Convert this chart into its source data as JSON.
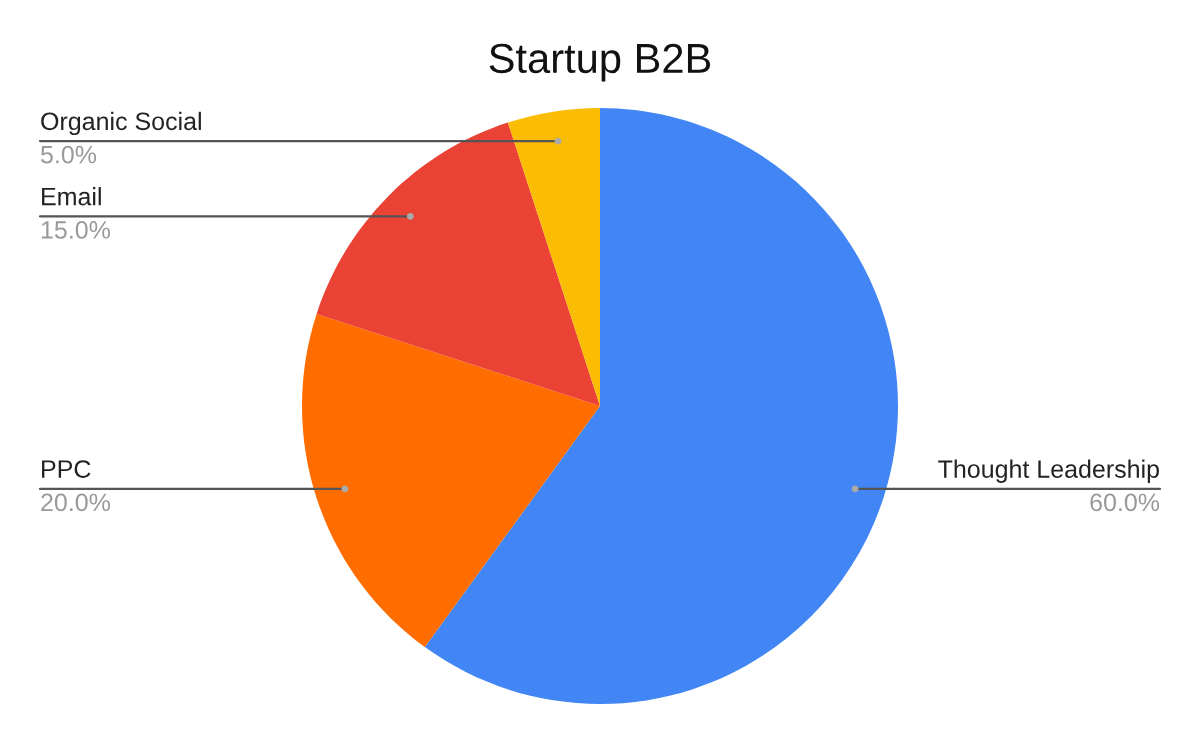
{
  "chart_data": {
    "type": "pie",
    "title": "Startup B2B",
    "categories": [
      "Thought Leadership",
      "PPC",
      "Email",
      "Organic Social"
    ],
    "values": [
      60,
      20,
      15,
      5
    ],
    "colors": [
      "#4285f4",
      "#ff6d01",
      "#ea4335",
      "#fbbc04"
    ],
    "value_labels": [
      "60.0%",
      "20.0%",
      "15.0%",
      "5.0%"
    ]
  }
}
